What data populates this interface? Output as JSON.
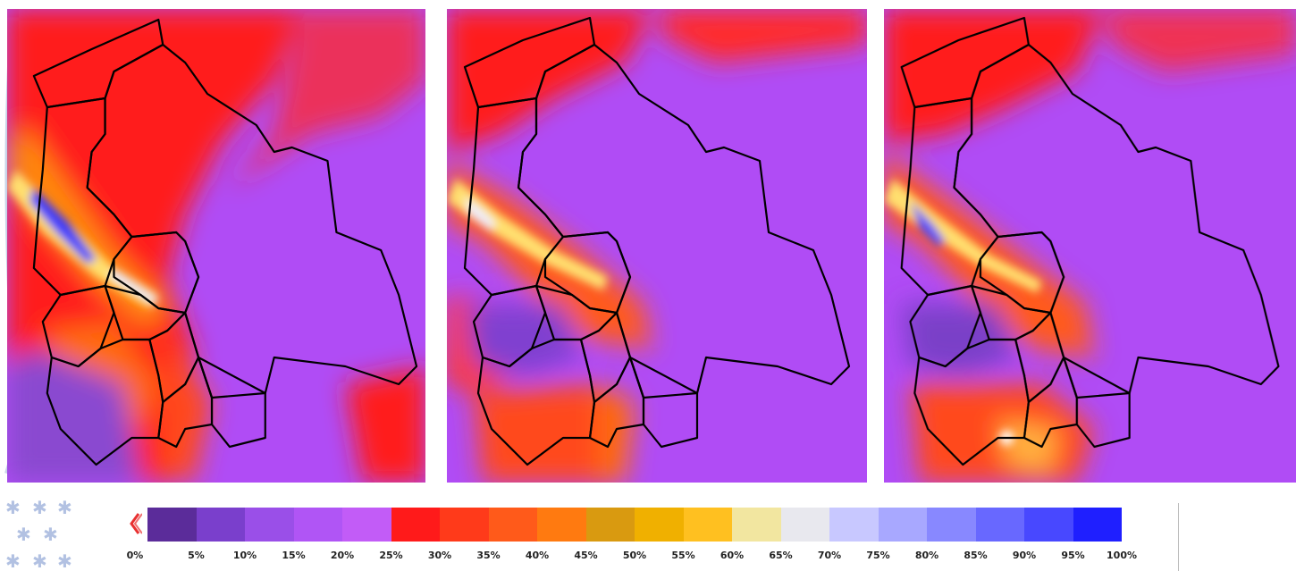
{
  "maps": [
    {
      "id": "map-1"
    },
    {
      "id": "map-2"
    },
    {
      "id": "map-3"
    }
  ],
  "legend": {
    "labels": [
      "0%",
      "5%",
      "10%",
      "15%",
      "20%",
      "25%",
      "30%",
      "35%",
      "40%",
      "45%",
      "50%",
      "55%",
      "60%",
      "65%",
      "70%",
      "75%",
      "80%",
      "85%",
      "90%",
      "95%",
      "100%"
    ],
    "colors": [
      "#5b2c9a",
      "#7a3fcc",
      "#9a4fe8",
      "#b055f5",
      "#c25cf7",
      "#ff1a1a",
      "#ff3a1a",
      "#ff5a1a",
      "#ff7a10",
      "#d99a10",
      "#f0b000",
      "#ffc020",
      "#f2e6a0",
      "#e8e8ee",
      "#c8c8ff",
      "#a8a8ff",
      "#8888ff",
      "#6868ff",
      "#4848ff",
      "#1f1fff"
    ]
  }
}
